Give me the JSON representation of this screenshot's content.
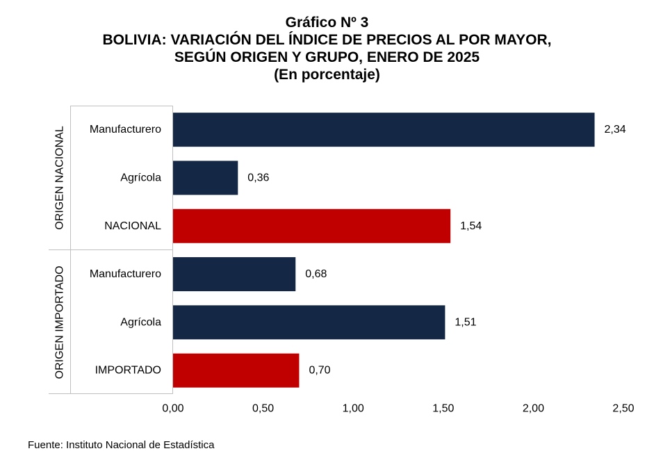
{
  "header": {
    "title": "Gráfico Nº 3",
    "subtitle_line1": "BOLIVIA: VARIACIÓN DEL ÍNDICE DE PRECIOS AL POR MAYOR,",
    "subtitle_line2": "SEGÚN ORIGEN Y GRUPO, ENERO DE 2025",
    "unit": "(En porcentaje)"
  },
  "source": "Fuente: Instituto Nacional de Estadística",
  "colors": {
    "group_bar": "#142846",
    "total_bar": "#c00000",
    "axis_line": "#bfbfbf"
  },
  "chart_data": {
    "type": "bar",
    "orientation": "horizontal",
    "groups": [
      {
        "name": "ORIGEN NACIONAL",
        "categories": [
          "Manufacturero",
          "Agrícola",
          "NACIONAL"
        ],
        "values": [
          2.34,
          0.36,
          1.54
        ],
        "kind": [
          "group",
          "group",
          "total"
        ]
      },
      {
        "name": "ORIGEN IMPORTADO",
        "categories": [
          "Manufacturero",
          "Agrícola",
          "IMPORTADO"
        ],
        "values": [
          0.68,
          1.51,
          0.7
        ],
        "kind": [
          "group",
          "group",
          "total"
        ]
      }
    ],
    "data_labels": [
      "2,34",
      "0,36",
      "1,54",
      "0,68",
      "1,51",
      "0,70"
    ],
    "xlim": [
      0,
      2.5
    ],
    "xticks": [
      0,
      0.5,
      1.0,
      1.5,
      2.0,
      2.5
    ],
    "xtick_labels": [
      "0,00",
      "0,50",
      "1,00",
      "1,50",
      "2,00",
      "2,50"
    ],
    "grid": false,
    "legend": "none"
  }
}
